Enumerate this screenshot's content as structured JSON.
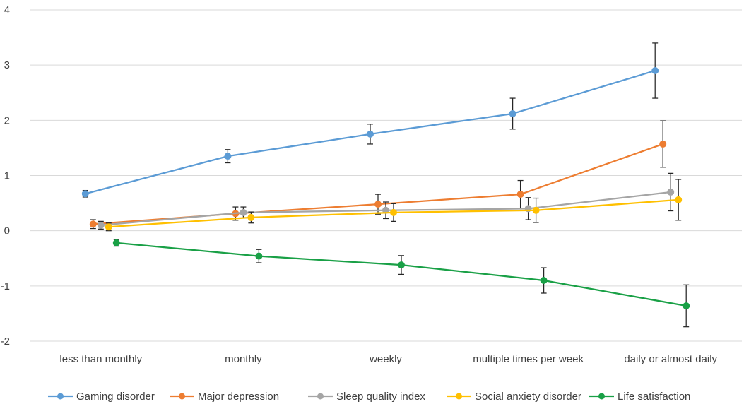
{
  "chart_data": {
    "type": "line",
    "categories": [
      "less than monthly",
      "monthly",
      "weekly",
      "multiple times per week",
      "daily or almost daily"
    ],
    "ylim": [
      -2,
      4
    ],
    "yticks": [
      -2,
      -1,
      0,
      1,
      2,
      3,
      4
    ],
    "grid": true,
    "legend_position": "bottom",
    "series": [
      {
        "name": "Gaming disorder",
        "color": "#5B9BD5",
        "values": [
          0.67,
          1.35,
          1.75,
          2.12,
          2.9
        ],
        "error": [
          0.06,
          0.12,
          0.18,
          0.28,
          0.5
        ]
      },
      {
        "name": "Major depression",
        "color": "#ED7D31",
        "values": [
          0.12,
          0.31,
          0.48,
          0.66,
          1.57
        ],
        "error": [
          0.08,
          0.12,
          0.18,
          0.25,
          0.42
        ]
      },
      {
        "name": "Sleep quality index",
        "color": "#A5A5A5",
        "values": [
          0.1,
          0.33,
          0.37,
          0.4,
          0.7
        ],
        "error": [
          0.07,
          0.1,
          0.15,
          0.2,
          0.34
        ]
      },
      {
        "name": "Social anxiety disorder",
        "color": "#FFC000",
        "values": [
          0.07,
          0.24,
          0.33,
          0.37,
          0.56
        ],
        "error": [
          0.07,
          0.1,
          0.16,
          0.22,
          0.37
        ]
      },
      {
        "name": "Life satisfaction",
        "color": "#19A046",
        "values": [
          -0.22,
          -0.46,
          -0.62,
          -0.9,
          -1.36
        ],
        "error": [
          0.06,
          0.12,
          0.17,
          0.23,
          0.38
        ]
      }
    ]
  }
}
